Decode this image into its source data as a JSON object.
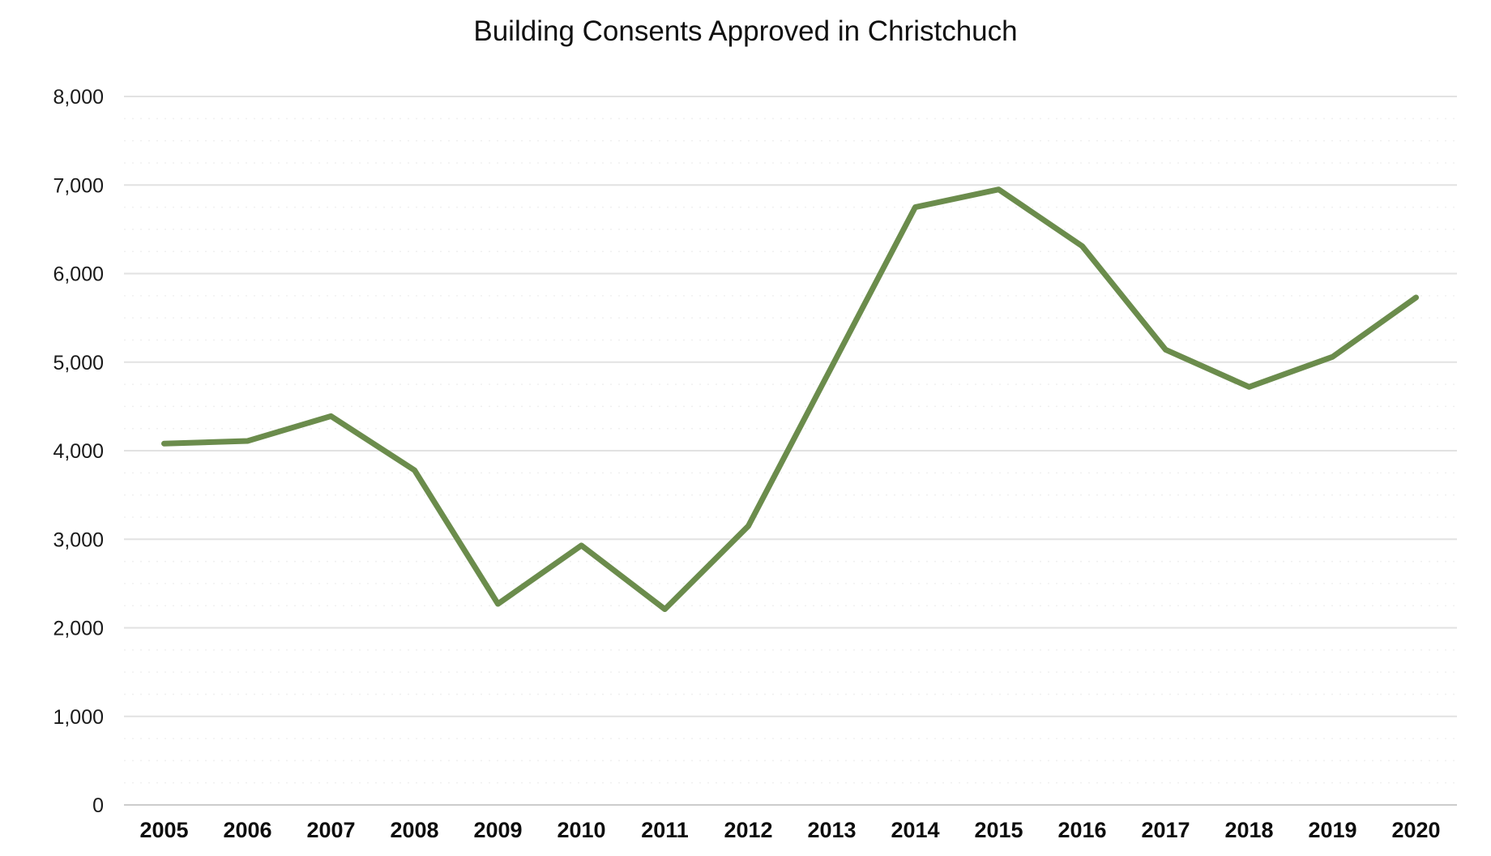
{
  "chart_data": {
    "type": "line",
    "title": "Building Consents Approved in Christchuch",
    "categories": [
      "2005",
      "2006",
      "2007",
      "2008",
      "2009",
      "2010",
      "2011",
      "2012",
      "2013",
      "2014",
      "2015",
      "2016",
      "2017",
      "2018",
      "2019",
      "2020"
    ],
    "series": [
      {
        "values": [
          4080,
          4110,
          4390,
          3780,
          2270,
          2930,
          2210,
          3150,
          4950,
          6750,
          6950,
          6310,
          5140,
          4720,
          5060,
          5730
        ]
      }
    ],
    "xlabel": "",
    "ylabel": "",
    "ylim": [
      0,
      8000
    ],
    "y_major_step": 1000,
    "y_minor_step": 250,
    "y_tick_labels": [
      "0",
      "1,000",
      "2,000",
      "3,000",
      "4,000",
      "5,000",
      "6,000",
      "7,000",
      "8,000"
    ],
    "grid": "horizontal, major solid + faint dotted minor",
    "legend": "none",
    "colors": {
      "line": "#6b8c4c",
      "grid_major": "#e2e2e2",
      "grid_zero": "#cccccc",
      "grid_minor": "#f0f0f0",
      "title_text": "#111111",
      "axis_text": "#1a1a1a"
    }
  }
}
